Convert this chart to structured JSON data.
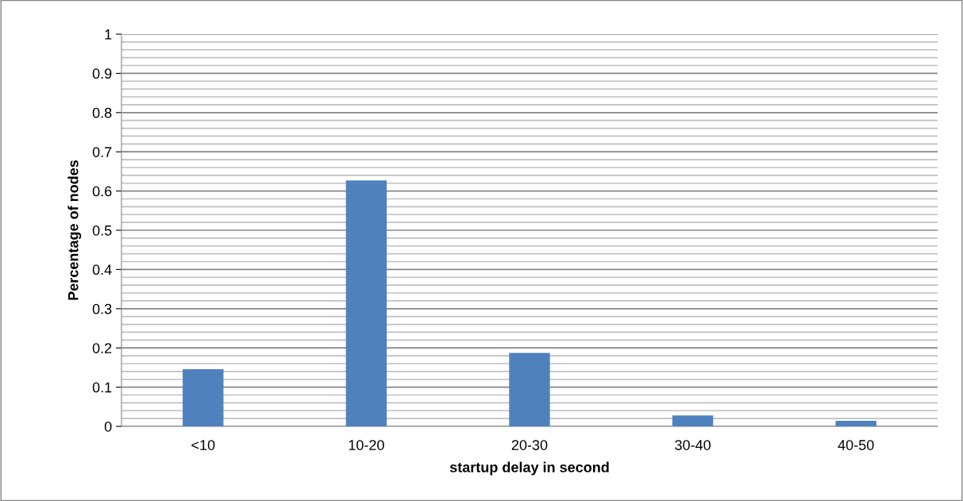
{
  "chart_data": {
    "type": "bar",
    "xlabel": "startup delay in second",
    "ylabel": "Percentage of nodes",
    "categories": [
      "<10",
      "10-20",
      "20-30",
      "30-40",
      "40-50"
    ],
    "values": [
      0.146,
      0.627,
      0.187,
      0.028,
      0.014
    ],
    "color": "#4f81bd",
    "ylim": [
      0,
      1
    ],
    "yticks": [
      0,
      0.1,
      0.2,
      0.3,
      0.4,
      0.5,
      0.6,
      0.7,
      0.8,
      0.9,
      1
    ],
    "grid": "y",
    "legend": false
  }
}
